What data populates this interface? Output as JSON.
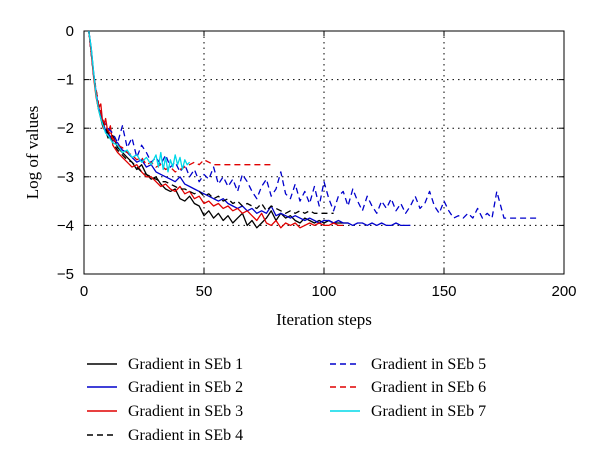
{
  "chart_data": {
    "type": "line",
    "title": "",
    "xlabel": "Iteration steps",
    "ylabel": "Log of values",
    "xlim": [
      0,
      200
    ],
    "ylim": [
      -5,
      0
    ],
    "xticks": [
      0,
      50,
      100,
      150,
      200
    ],
    "yticks": [
      0,
      -1,
      -2,
      -3,
      -4,
      -5
    ],
    "grid": true,
    "grid_style": "dotted",
    "legend_position": "bottom",
    "series": [
      {
        "name": "Gradient in SEb 1",
        "color": "#000000",
        "dashed": false,
        "x": [
          2,
          3,
          4,
          5,
          6,
          7,
          8,
          9,
          10,
          12,
          14,
          16,
          18,
          20,
          22,
          24,
          26,
          28,
          30,
          32,
          34,
          36,
          38,
          40,
          42,
          44,
          46,
          48,
          50,
          52,
          54,
          56,
          58,
          60,
          62,
          64,
          66,
          68,
          70,
          72,
          74,
          76,
          78,
          80,
          82,
          84,
          86,
          88,
          90,
          92,
          94,
          96,
          98,
          100,
          102,
          104,
          106,
          108,
          110
        ],
        "y": [
          0,
          -0.4,
          -0.9,
          -1.3,
          -1.6,
          -1.8,
          -2.0,
          -2.05,
          -2.2,
          -2.15,
          -2.4,
          -2.5,
          -2.6,
          -2.7,
          -2.85,
          -2.75,
          -2.95,
          -3.05,
          -3.0,
          -3.15,
          -3.25,
          -3.3,
          -3.25,
          -3.45,
          -3.5,
          -3.4,
          -3.55,
          -3.6,
          -3.8,
          -3.7,
          -3.85,
          -3.75,
          -3.9,
          -3.8,
          -3.95,
          -3.85,
          -3.75,
          -4.0,
          -3.9,
          -4.05,
          -3.95,
          -3.85,
          -3.7,
          -3.9,
          -3.75,
          -3.85,
          -3.8,
          -3.9,
          -3.95,
          -3.85,
          -3.9,
          -3.95,
          -3.9,
          -3.95,
          -3.9,
          -3.95,
          -3.95,
          -3.95,
          -3.95
        ]
      },
      {
        "name": "Gradient in SEb 2",
        "color": "#0000cc",
        "dashed": false,
        "x": [
          2,
          3,
          4,
          5,
          6,
          7,
          8,
          9,
          10,
          12,
          14,
          16,
          18,
          20,
          22,
          24,
          26,
          28,
          30,
          32,
          34,
          36,
          38,
          40,
          42,
          44,
          46,
          48,
          50,
          52,
          54,
          56,
          58,
          60,
          62,
          64,
          66,
          68,
          70,
          72,
          74,
          76,
          78,
          80,
          82,
          84,
          86,
          88,
          90,
          92,
          94,
          96,
          98,
          100,
          102,
          104,
          106,
          108,
          110,
          112,
          114,
          116,
          118,
          120,
          122,
          124,
          126,
          128,
          130,
          132,
          134,
          136
        ],
        "y": [
          0,
          -0.35,
          -0.85,
          -1.25,
          -1.55,
          -1.75,
          -1.9,
          -2.05,
          -2.1,
          -2.25,
          -2.3,
          -2.45,
          -2.5,
          -2.6,
          -2.7,
          -2.65,
          -2.8,
          -2.75,
          -2.9,
          -2.95,
          -3.0,
          -3.05,
          -3.1,
          -3.0,
          -3.15,
          -3.2,
          -3.25,
          -3.3,
          -3.35,
          -3.4,
          -3.45,
          -3.5,
          -3.45,
          -3.55,
          -3.6,
          -3.65,
          -3.6,
          -3.7,
          -3.65,
          -3.75,
          -3.7,
          -3.75,
          -3.6,
          -3.8,
          -3.75,
          -3.8,
          -3.85,
          -3.8,
          -3.85,
          -3.9,
          -3.85,
          -3.9,
          -3.95,
          -3.9,
          -3.9,
          -3.95,
          -3.9,
          -3.95,
          -3.95,
          -4.0,
          -3.95,
          -3.95,
          -4.0,
          -3.95,
          -4.0,
          -3.95,
          -4.0,
          -4.0,
          -3.95,
          -4.0,
          -4.0,
          -4.0
        ]
      },
      {
        "name": "Gradient in SEb 3",
        "color": "#e00000",
        "dashed": false,
        "x": [
          2,
          3,
          4,
          5,
          6,
          7,
          8,
          9,
          10,
          11,
          12,
          14,
          16,
          18,
          20,
          22,
          24,
          26,
          28,
          30,
          32,
          34,
          36,
          38,
          40,
          42,
          44,
          46,
          48,
          50,
          52,
          54,
          56,
          58,
          60,
          62,
          64,
          66,
          68,
          70,
          72,
          74,
          76,
          78,
          80,
          82,
          84,
          86,
          88,
          90,
          92,
          94,
          96,
          98,
          100,
          102,
          104,
          106,
          108
        ],
        "y": [
          0,
          -0.45,
          -0.95,
          -1.35,
          -1.6,
          -1.5,
          -2.0,
          -1.8,
          -2.1,
          -1.95,
          -2.35,
          -2.5,
          -2.6,
          -2.7,
          -2.8,
          -2.75,
          -2.9,
          -3.0,
          -3.0,
          -3.1,
          -3.2,
          -3.15,
          -3.25,
          -3.3,
          -3.2,
          -3.35,
          -3.3,
          -3.45,
          -3.4,
          -3.55,
          -3.5,
          -3.6,
          -3.55,
          -3.65,
          -3.6,
          -3.7,
          -3.65,
          -3.75,
          -3.7,
          -3.8,
          -3.9,
          -3.75,
          -3.95,
          -4.0,
          -3.9,
          -4.05,
          -3.95,
          -4.0,
          -3.95,
          -4.05,
          -4.0,
          -3.95,
          -4.0,
          -3.95,
          -4.0,
          -4.0,
          -3.95,
          -4.0,
          -4.0
        ]
      },
      {
        "name": "Gradient in SEb 4",
        "color": "#000000",
        "dashed": true,
        "x": [
          2,
          4,
          6,
          8,
          10,
          12,
          14,
          16,
          18,
          20,
          22,
          24,
          26,
          28,
          30,
          32,
          34,
          36,
          38,
          40,
          42,
          44,
          46,
          48,
          50,
          52,
          54,
          56,
          58,
          60,
          62,
          64,
          66,
          68,
          70,
          72,
          74,
          76,
          78,
          80,
          82,
          84,
          86,
          88,
          90,
          92,
          94,
          96,
          98,
          100,
          102,
          104
        ],
        "y": [
          0,
          -0.9,
          -1.5,
          -1.9,
          -2.1,
          -2.3,
          -2.45,
          -2.55,
          -2.65,
          -2.7,
          -2.8,
          -2.9,
          -2.95,
          -3.0,
          -3.05,
          -3.1,
          -3.1,
          -3.15,
          -3.2,
          -3.25,
          -3.25,
          -3.3,
          -3.35,
          -3.3,
          -3.4,
          -3.35,
          -3.45,
          -3.4,
          -3.5,
          -3.45,
          -3.55,
          -3.5,
          -3.6,
          -3.55,
          -3.6,
          -3.65,
          -3.55,
          -3.7,
          -3.6,
          -3.65,
          -3.7,
          -3.75,
          -3.7,
          -3.75,
          -3.7,
          -3.75,
          -3.7,
          -3.75,
          -3.75,
          -3.75,
          -3.75,
          -3.75
        ]
      },
      {
        "name": "Gradient in SEb 5",
        "color": "#0000cc",
        "dashed": true,
        "x": [
          2,
          4,
          6,
          8,
          10,
          12,
          14,
          16,
          18,
          20,
          22,
          24,
          26,
          28,
          30,
          32,
          34,
          36,
          38,
          40,
          42,
          44,
          46,
          48,
          50,
          52,
          54,
          56,
          58,
          60,
          62,
          64,
          66,
          68,
          70,
          72,
          74,
          76,
          78,
          80,
          82,
          84,
          86,
          88,
          90,
          92,
          94,
          96,
          98,
          100,
          102,
          104,
          106,
          108,
          110,
          112,
          114,
          116,
          118,
          120,
          122,
          124,
          126,
          128,
          130,
          132,
          134,
          136,
          138,
          140,
          142,
          144,
          146,
          148,
          150,
          152,
          154,
          156,
          158,
          160,
          162,
          164,
          166,
          168,
          170,
          172,
          175,
          180,
          185,
          190
        ],
        "y": [
          0,
          -0.9,
          -1.5,
          -1.85,
          -2.0,
          -2.1,
          -2.3,
          -1.95,
          -2.4,
          -2.2,
          -2.6,
          -2.35,
          -2.5,
          -2.7,
          -2.6,
          -2.75,
          -2.55,
          -2.8,
          -2.7,
          -2.9,
          -2.75,
          -3.0,
          -2.85,
          -3.1,
          -2.95,
          -3.05,
          -2.8,
          -3.15,
          -3.0,
          -3.2,
          -3.05,
          -3.3,
          -2.95,
          -3.1,
          -3.3,
          -3.45,
          -3.2,
          -3.05,
          -3.4,
          -3.25,
          -2.9,
          -3.35,
          -3.45,
          -3.15,
          -3.5,
          -3.3,
          -3.55,
          -3.2,
          -3.6,
          -3.1,
          -3.45,
          -3.7,
          -3.4,
          -3.3,
          -3.6,
          -3.25,
          -3.5,
          -3.7,
          -3.4,
          -3.6,
          -3.75,
          -3.5,
          -3.65,
          -3.45,
          -3.7,
          -3.55,
          -3.75,
          -3.6,
          -3.4,
          -3.65,
          -3.55,
          -3.3,
          -3.6,
          -3.75,
          -3.5,
          -3.7,
          -3.85,
          -3.8,
          -3.85,
          -3.75,
          -3.85,
          -3.65,
          -3.85,
          -3.75,
          -3.85,
          -3.3,
          -3.85,
          -3.85,
          -3.85,
          -3.85
        ]
      },
      {
        "name": "Gradient in SEb 6",
        "color": "#e00000",
        "dashed": true,
        "x": [
          2,
          4,
          6,
          8,
          10,
          12,
          14,
          16,
          18,
          20,
          22,
          24,
          26,
          28,
          30,
          32,
          34,
          36,
          38,
          40,
          42,
          44,
          46,
          48,
          50,
          52,
          54,
          56,
          58,
          60,
          62,
          64,
          66,
          68,
          70,
          72,
          74,
          76,
          78
        ],
        "y": [
          0,
          -0.9,
          -1.5,
          -1.85,
          -2.05,
          -2.2,
          -2.35,
          -2.4,
          -2.5,
          -2.55,
          -2.65,
          -2.6,
          -2.75,
          -2.7,
          -2.8,
          -2.75,
          -2.85,
          -2.8,
          -2.9,
          -2.85,
          -2.8,
          -2.75,
          -2.7,
          -2.75,
          -2.65,
          -2.7,
          -2.75,
          -2.75,
          -2.75,
          -2.75,
          -2.75,
          -2.75,
          -2.75,
          -2.75,
          -2.75,
          -2.75,
          -2.75,
          -2.75,
          -2.75
        ]
      },
      {
        "name": "Gradient in SEb 7",
        "color": "#00d8e8",
        "dashed": false,
        "x": [
          2,
          3,
          4,
          5,
          6,
          7,
          8,
          9,
          10,
          12,
          14,
          16,
          18,
          20,
          22,
          24,
          26,
          28,
          30,
          31,
          32,
          33,
          34,
          35,
          36,
          37,
          38,
          39,
          40,
          41,
          42,
          43,
          44
        ],
        "y": [
          0,
          -0.35,
          -0.85,
          -1.3,
          -1.6,
          -1.8,
          -1.95,
          -2.1,
          -2.15,
          -2.3,
          -2.35,
          -2.5,
          -2.45,
          -2.6,
          -2.55,
          -2.7,
          -2.6,
          -2.75,
          -2.55,
          -2.8,
          -2.5,
          -2.85,
          -2.6,
          -2.9,
          -2.65,
          -2.8,
          -2.55,
          -2.75,
          -2.6,
          -2.85,
          -2.65,
          -2.75,
          -2.7
        ]
      }
    ]
  }
}
